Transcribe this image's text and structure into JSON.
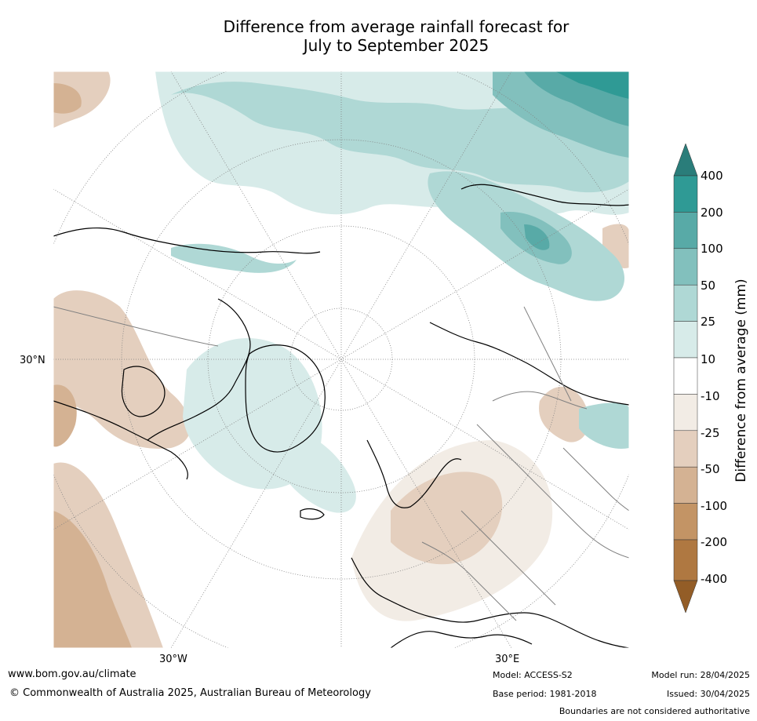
{
  "title_line1": "Difference from average rainfall forecast for",
  "title_line2": "July to September 2025",
  "map": {
    "lat_label": "30°N",
    "lon_labels": [
      "30°W",
      "30°E"
    ]
  },
  "colorbar": {
    "label": "Difference from average (mm)",
    "ticks": [
      "400",
      "200",
      "100",
      "50",
      "25",
      "10",
      "-10",
      "-25",
      "-50",
      "-100",
      "-200",
      "-400"
    ],
    "colors": [
      "#2a7d7a",
      "#2f9a95",
      "#58aaa7",
      "#82c0bd",
      "#afd8d5",
      "#d7ebe9",
      "#ffffff",
      "#f2ece5",
      "#e4cfbe",
      "#d4b293",
      "#c39465",
      "#af7841",
      "#935d27"
    ]
  },
  "footer": {
    "website": "www.bom.gov.au/climate",
    "copyright": "© Commonwealth of Australia 2025, Australian Bureau of Meteorology",
    "model": "Model: ACCESS-S2",
    "base_period": "Base period: 1981-2018",
    "model_run": "Model run: 28/04/2025",
    "issued": "Issued: 30/04/2025",
    "disclaimer": "Boundaries are not considered authoritative"
  }
}
